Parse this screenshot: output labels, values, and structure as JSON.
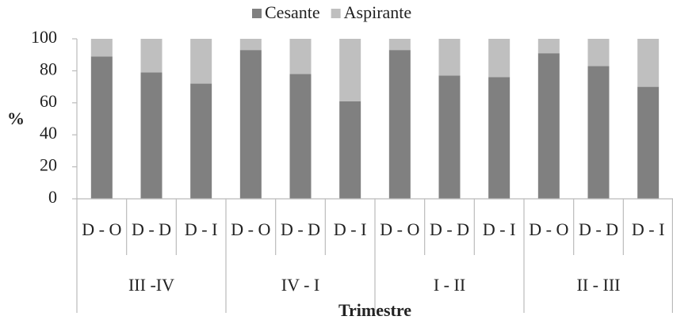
{
  "chart_data": {
    "type": "stacked_bar",
    "y_label": "%",
    "x_label": "Trimestre",
    "categories": [
      "D - O",
      "D - D",
      "D - I",
      "D - O",
      "D - D",
      "D - I",
      "D - O",
      "D - D",
      "D - I",
      "D - O",
      "D - D",
      "D - I"
    ],
    "groups": [
      "III -IV",
      "IV - I",
      "I - II",
      "II - III"
    ],
    "series": [
      {
        "name": "Cesante",
        "color": "#808080",
        "values": [
          89,
          79,
          72,
          93,
          78,
          61,
          93,
          77,
          76,
          91,
          83,
          70
        ]
      },
      {
        "name": "Aspirante",
        "color": "#bfbfbf",
        "values": [
          11,
          21,
          28,
          7,
          22,
          39,
          7,
          23,
          24,
          9,
          17,
          30
        ]
      }
    ],
    "ylim": [
      0,
      100
    ],
    "yticks": [
      0,
      20,
      40,
      60,
      80,
      100
    ],
    "legend": "top"
  }
}
